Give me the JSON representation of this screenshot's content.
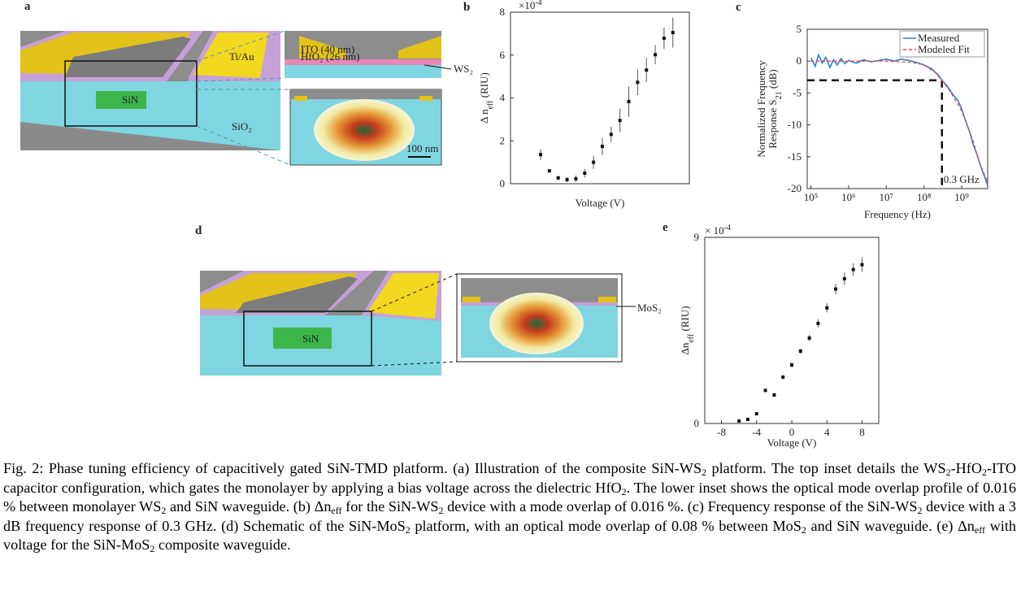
{
  "panel_labels": [
    "a",
    "b",
    "c",
    "d",
    "e"
  ],
  "diagram_a": {
    "labels": [
      "Ti/Au",
      "ITO (40 nm)",
      "HfO₂ (26 nm)",
      "WS₂",
      "SiN",
      "SiO₂",
      "100 nm"
    ]
  },
  "diagram_d": {
    "labels": [
      "SiN",
      "MoS₂"
    ]
  },
  "chart_data": [
    {
      "type": "scatter",
      "multiplier": [
        "×10",
        "-4"
      ],
      "ylabel": [
        "Δ n",
        "eff",
        " (RIU)"
      ],
      "xlabel": "Voltage (V)",
      "ylim": [
        0,
        8
      ],
      "yticks": [
        0,
        2,
        4,
        6,
        8
      ],
      "color": "#111",
      "categories": [
        null,
        null,
        null,
        null,
        null,
        null,
        null,
        null,
        null,
        null,
        null,
        null,
        null,
        null,
        null,
        null
      ],
      "values": [
        1.36,
        0.6,
        0.27,
        0.19,
        0.23,
        0.49,
        1.0,
        1.74,
        2.3,
        2.95,
        3.83,
        4.73,
        5.3,
        6.02,
        6.78,
        7.05
      ],
      "errors": [
        0.25,
        0.08,
        0.1,
        0.12,
        0.15,
        0.2,
        0.3,
        0.4,
        0.35,
        0.55,
        0.7,
        0.6,
        0.55,
        0.45,
        0.5,
        0.7
      ]
    },
    {
      "type": "line",
      "xscale": "log",
      "ylabel": [
        "Normalized Frequency",
        "Response S",
        "21",
        " (dB)"
      ],
      "xlabel": "Frequency (Hz)",
      "xlim": [
        80000,
        4900000000
      ],
      "ylim": [
        -20,
        5
      ],
      "yticks": [
        -20,
        -15,
        -10,
        -5,
        0,
        5
      ],
      "xticks": [
        {
          "value": 100000,
          "label": "10⁵"
        },
        {
          "value": 1000000,
          "label": "10⁶"
        },
        {
          "value": 10000000,
          "label": "10⁷"
        },
        {
          "value": 100000000,
          "label": "10⁸"
        },
        {
          "value": 1000000000,
          "label": "10⁹"
        }
      ],
      "legend": "top-right",
      "series": [
        {
          "name": "Measured",
          "color": "#2f7fc1",
          "dash": false,
          "x": [
            100000,
            130000,
            160000,
            200000,
            250000,
            320000,
            400000,
            500000,
            630000,
            800000,
            1000000,
            1600000,
            2500000,
            4000000,
            6300000,
            10000000,
            16000000,
            25000000,
            40000000,
            63000000,
            100000000,
            160000000,
            250000000,
            300000000,
            400000000,
            630000000,
            800000000,
            1000000000,
            1300000000,
            1600000000,
            2000000000,
            2500000000,
            3200000000,
            4000000000,
            4900000000
          ],
          "values": [
            0.5,
            -0.8,
            1.0,
            -0.3,
            0.6,
            -1.0,
            0.2,
            -0.6,
            0.4,
            -0.4,
            0.1,
            -0.3,
            0.2,
            -0.1,
            0.1,
            0.3,
            0.0,
            0.3,
            0.1,
            -0.2,
            -0.6,
            -1.2,
            -2.3,
            -3,
            -3.8,
            -5.5,
            -6.2,
            -7.5,
            -9.5,
            -11,
            -13,
            -14.5,
            -16.5,
            -18,
            -19.5
          ]
        },
        {
          "name": "Modeled Fit",
          "color": "#e8474a",
          "dash": true,
          "x": [
            100000,
            1000000,
            10000000,
            50000000,
            100000000,
            200000000,
            300000000,
            500000000,
            1000000000,
            2000000000,
            3000000000,
            4900000000
          ],
          "values": [
            0,
            0,
            0,
            -0.2,
            -0.6,
            -1.8,
            -3,
            -4.8,
            -7.8,
            -12.5,
            -16,
            -19
          ]
        }
      ],
      "threshold": {
        "x": 300000000,
        "y": -3,
        "label": "0.3 GHz"
      }
    },
    {
      "type": "scatter",
      "multiplier": [
        "× 10",
        "-4"
      ],
      "ylabel": [
        "Δn",
        "eff",
        " (RIU)"
      ],
      "xlabel": "Voltage (V)",
      "xlim": [
        -9.9,
        9.9
      ],
      "xticks": [
        -8,
        -4,
        0,
        4,
        8
      ],
      "ylim": [
        0,
        9
      ],
      "yticks": [
        0,
        9
      ],
      "color": "#111",
      "x": [
        -6,
        -5,
        -4,
        -3,
        -2,
        -1,
        0,
        1,
        2,
        3,
        4,
        5,
        6,
        7,
        8
      ],
      "values": [
        0.12,
        0.2,
        0.47,
        1.6,
        1.38,
        2.24,
        2.83,
        3.5,
        4.13,
        4.84,
        5.59,
        6.5,
        7.0,
        7.44,
        7.68
      ],
      "errors": [
        0.05,
        0.06,
        0.08,
        0.08,
        0.1,
        0.1,
        0.12,
        0.12,
        0.15,
        0.2,
        0.22,
        0.25,
        0.3,
        0.3,
        0.35
      ]
    }
  ],
  "caption": [
    {
      "text": "Fig. 2: Phase tuning efficiency of capacitively gated SiN-TMD platform. (a) Illustration of the composite SiN-WS"
    },
    {
      "sub": "2"
    },
    {
      "text": " platform. The top inset details the WS"
    },
    {
      "sub": "2"
    },
    {
      "text": "-HfO"
    },
    {
      "sub": "2"
    },
    {
      "text": "-ITO capacitor configuration, which gates the monolayer by applying a bias voltage across the dielectric HfO"
    },
    {
      "sub": "2"
    },
    {
      "text": ". The lower inset shows the optical mode overlap profile of 0.016 % between monolayer WS"
    },
    {
      "sub": "2"
    },
    {
      "text": " and SiN waveguide. (b) Δn"
    },
    {
      "sub": "eff"
    },
    {
      "text": " for the SiN-WS"
    },
    {
      "sub": "2"
    },
    {
      "text": " device with a mode overlap of 0.016 %. (c) Frequency response of the SiN-WS"
    },
    {
      "sub": "2"
    },
    {
      "text": " device with a 3 dB frequency response of 0.3 GHz.  (d) Schematic of the SiN-MoS"
    },
    {
      "sub": "2"
    },
    {
      "text": " platform, with an optical mode overlap of 0.08 % between MoS"
    },
    {
      "sub": "2"
    },
    {
      "text": " and SiN waveguide. (e) Δn"
    },
    {
      "sub": "eff"
    },
    {
      "text": " with voltage for the SiN-MoS"
    },
    {
      "sub": "2"
    },
    {
      "text": " composite waveguide."
    }
  ]
}
